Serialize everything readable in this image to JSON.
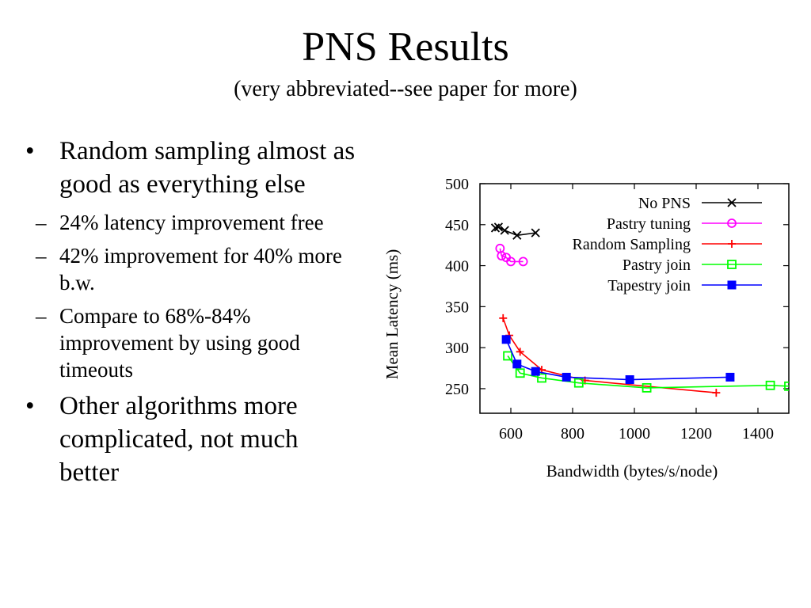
{
  "slide": {
    "title": "PNS Results",
    "subtitle": "(very abbreviated--see paper for more)",
    "bullets": [
      {
        "text": "Random sampling almost as good as everything else",
        "sub": [
          "24% latency improvement free",
          "42% improvement for 40% more b.w.",
          "Compare to 68%-84% improvement by using good timeouts"
        ]
      },
      {
        "text": "Other algorithms more complicated, not much better"
      }
    ]
  },
  "chart_data": {
    "type": "line",
    "xlabel": "Bandwidth (bytes/s/node)",
    "ylabel": "Mean Latency (ms)",
    "xlim": [
      500,
      1500
    ],
    "ylim": [
      220,
      500
    ],
    "xticks": [
      600,
      800,
      1000,
      1200,
      1400
    ],
    "yticks": [
      250,
      300,
      350,
      400,
      450,
      500
    ],
    "grid": false,
    "legend_position": "top-right",
    "series": [
      {
        "name": "No PNS",
        "color": "#000000",
        "marker": "x",
        "points": [
          [
            550,
            446
          ],
          [
            560,
            447
          ],
          [
            580,
            443
          ],
          [
            620,
            437
          ],
          [
            680,
            440
          ]
        ]
      },
      {
        "name": "Pastry tuning",
        "color": "#ff00ff",
        "marker": "circle",
        "points": [
          [
            565,
            421
          ],
          [
            570,
            412
          ],
          [
            585,
            410
          ],
          [
            600,
            405
          ],
          [
            640,
            405
          ]
        ]
      },
      {
        "name": "Random Sampling",
        "color": "#ff0000",
        "marker": "plus",
        "points": [
          [
            575,
            336
          ],
          [
            595,
            315
          ],
          [
            630,
            295
          ],
          [
            700,
            273
          ],
          [
            840,
            260
          ],
          [
            1265,
            245
          ]
        ]
      },
      {
        "name": "Pastry join",
        "color": "#00ff00",
        "marker": "square-open",
        "points": [
          [
            590,
            290
          ],
          [
            630,
            269
          ],
          [
            700,
            263
          ],
          [
            820,
            257
          ],
          [
            1040,
            251
          ],
          [
            1440,
            254
          ],
          [
            1500,
            253
          ]
        ]
      },
      {
        "name": "Tapestry join",
        "color": "#0000ff",
        "marker": "square-filled",
        "points": [
          [
            585,
            310
          ],
          [
            620,
            280
          ],
          [
            680,
            271
          ],
          [
            780,
            264
          ],
          [
            985,
            261
          ],
          [
            1310,
            264
          ]
        ]
      }
    ]
  }
}
